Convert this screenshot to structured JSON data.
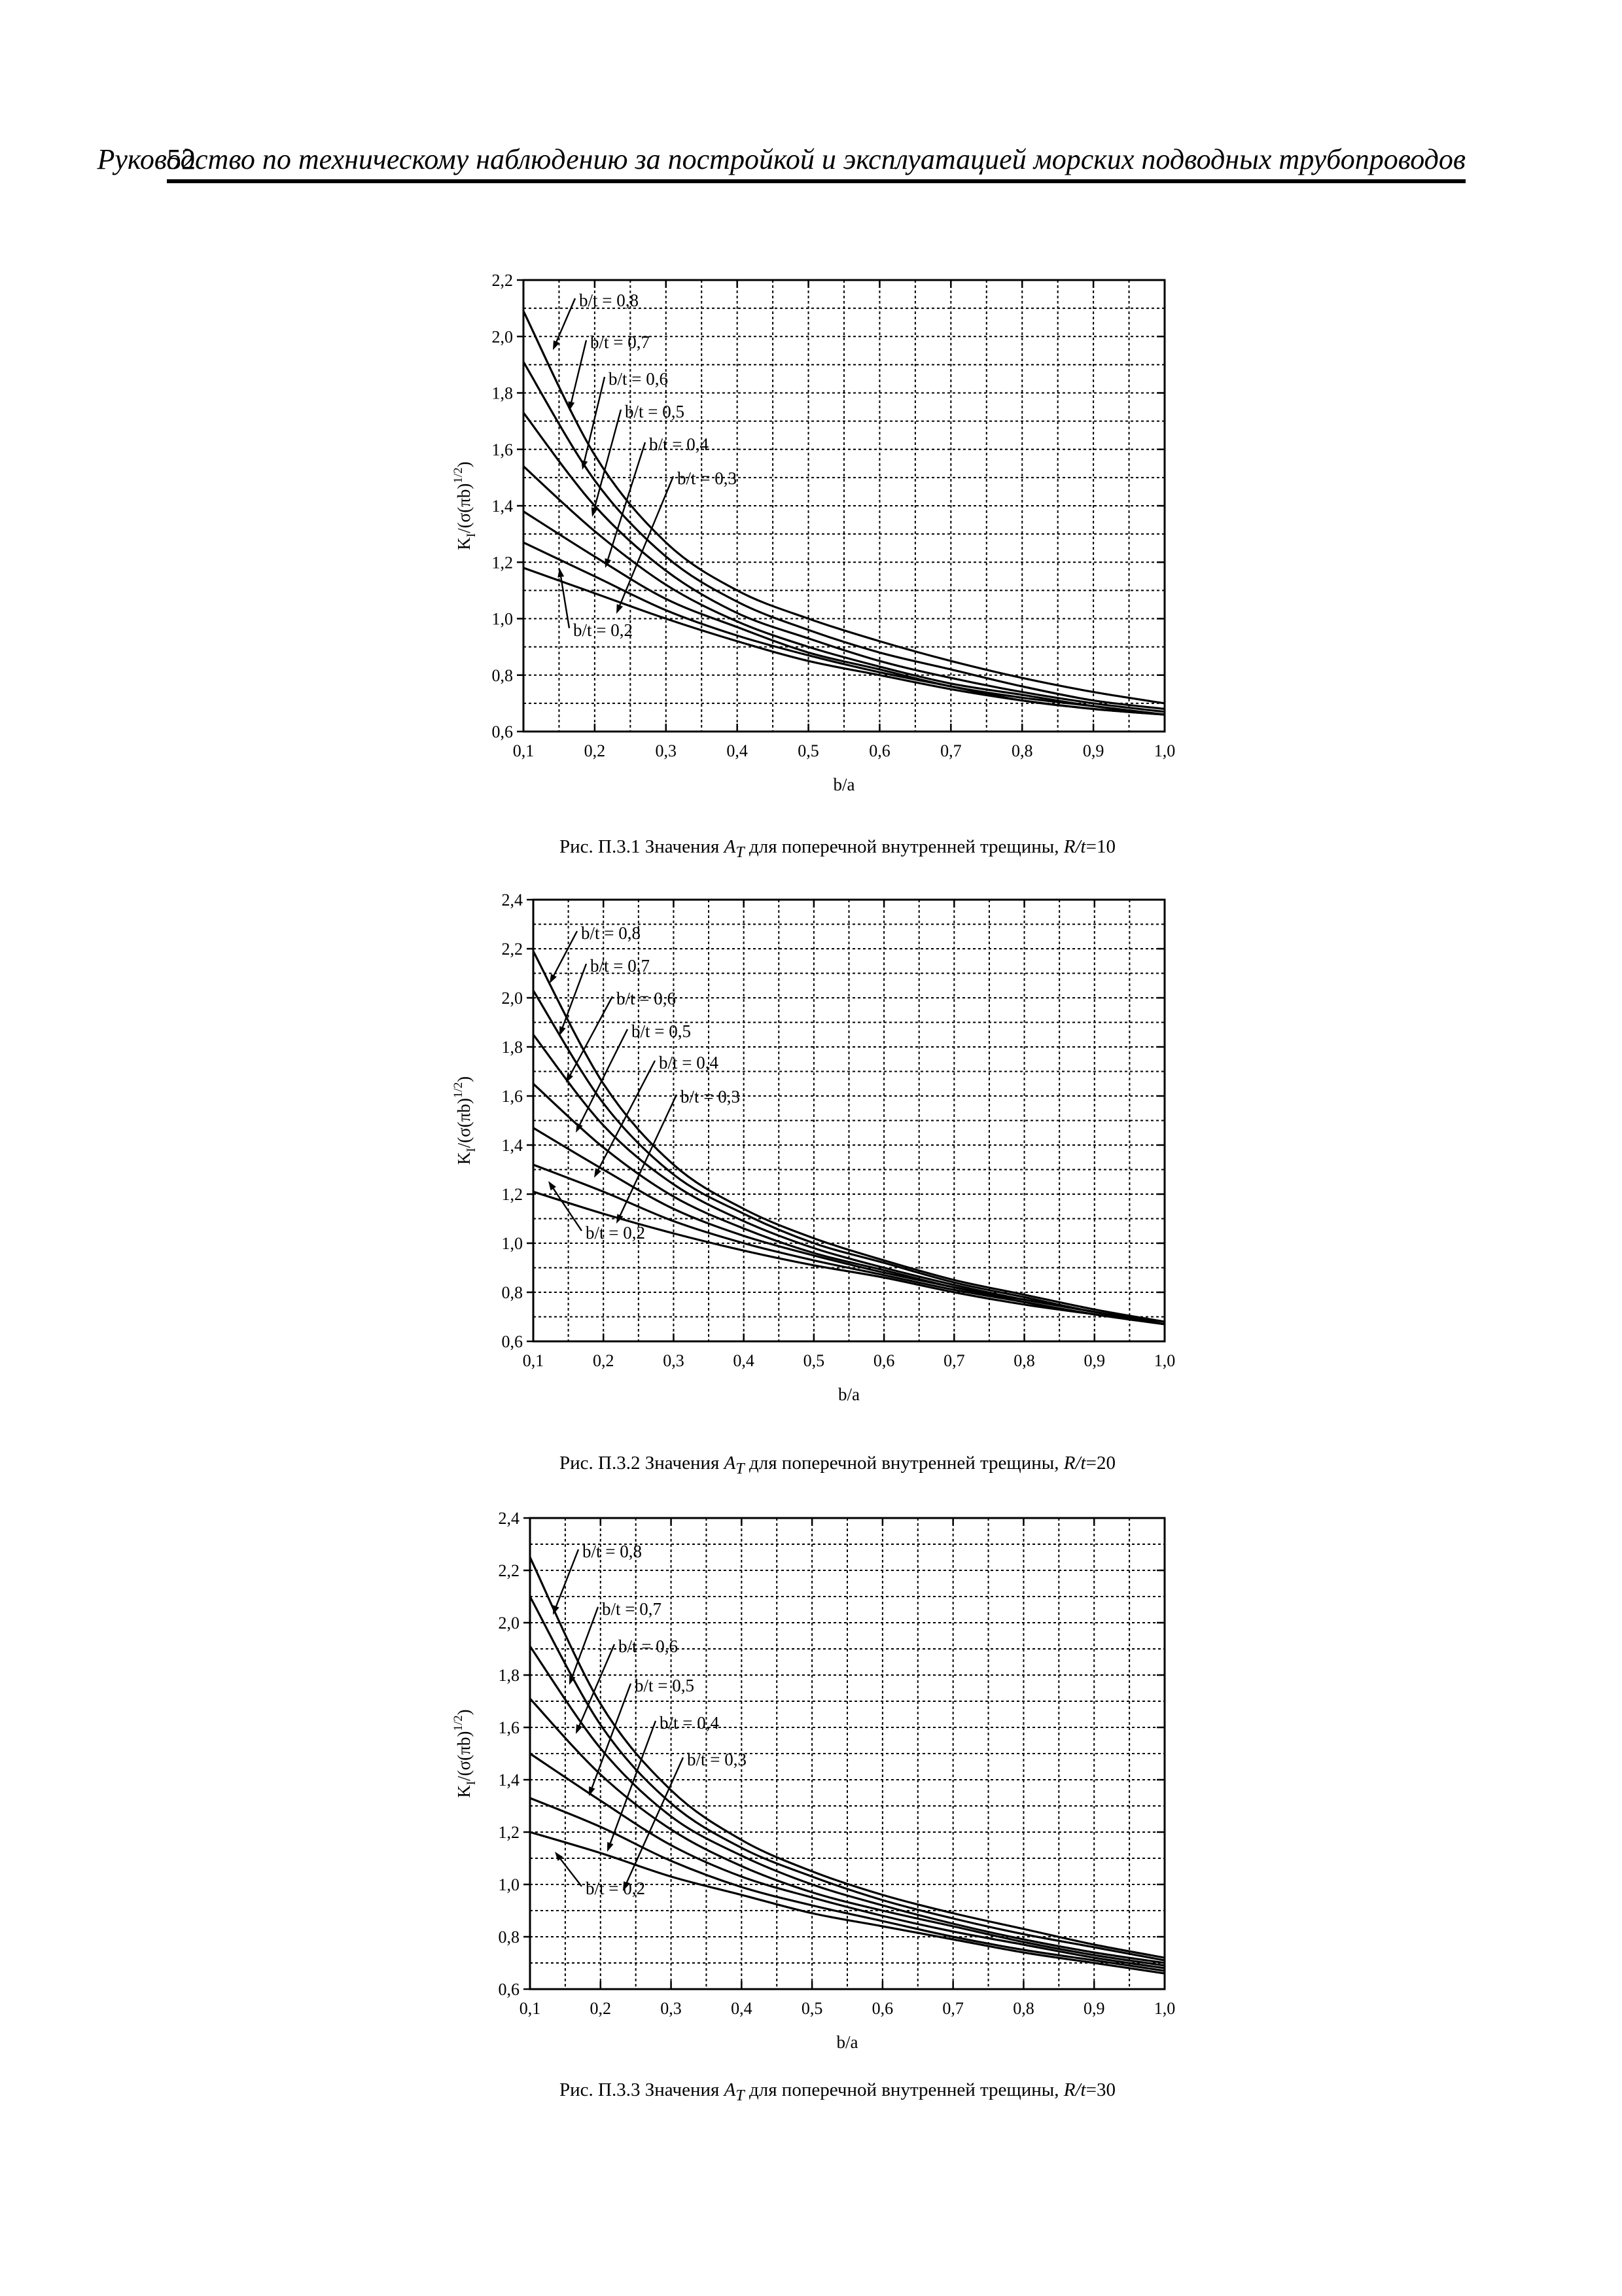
{
  "header": {
    "page_number": "52",
    "title": "Руководство по техническому наблюдению за постройкой и эксплуатацией морских подводных трубопроводов"
  },
  "figures": [
    {
      "caption_prefix": "Рис. П.3.1 Значения ",
      "caption_symbol": "A",
      "caption_subscript": "T",
      "caption_middle": " для поперечной внутренней трещины, ",
      "caption_ratio": "R/t",
      "caption_value": "=10"
    },
    {
      "caption_prefix": "Рис. П.3.2 Значения ",
      "caption_symbol": "A",
      "caption_subscript": "T",
      "caption_middle": " для поперечной внутренней трещины, ",
      "caption_ratio": "R/t",
      "caption_value": "=20"
    },
    {
      "caption_prefix": "Рис. П.3.3 Значения ",
      "caption_symbol": "A",
      "caption_subscript": "T",
      "caption_middle": " для поперечной внутренней трещины, ",
      "caption_ratio": "R/t",
      "caption_value": "=30"
    }
  ],
  "chart_data": [
    {
      "type": "line",
      "xlabel": "b/a",
      "ylabel": "K_I/(σ(πb)^1/2)",
      "xlim": [
        0.1,
        1.0
      ],
      "ylim": [
        0.6,
        2.2
      ],
      "xticks": [
        "0,1",
        "0,2",
        "0,3",
        "0,4",
        "0,5",
        "0,6",
        "0,7",
        "0,8",
        "0,9",
        "1,0"
      ],
      "yticks": [
        "0,6",
        "0,8",
        "1,0",
        "1,2",
        "1,4",
        "1,6",
        "1,8",
        "2,0",
        "2,2"
      ],
      "grid": true,
      "x": [
        0.1,
        0.2,
        0.3,
        0.4,
        0.5,
        0.6,
        0.7,
        0.8,
        0.9,
        1.0
      ],
      "series": [
        {
          "name": "b/t = 0,8",
          "values": [
            2.09,
            1.58,
            1.27,
            1.1,
            1.0,
            0.92,
            0.85,
            0.79,
            0.74,
            0.7
          ]
        },
        {
          "name": "b/t = 0,7",
          "values": [
            1.91,
            1.49,
            1.22,
            1.06,
            0.96,
            0.88,
            0.82,
            0.76,
            0.71,
            0.68
          ]
        },
        {
          "name": "b/t = 0,6",
          "values": [
            1.73,
            1.4,
            1.17,
            1.02,
            0.93,
            0.85,
            0.79,
            0.74,
            0.7,
            0.67
          ]
        },
        {
          "name": "b/t = 0,5",
          "values": [
            1.54,
            1.31,
            1.12,
            0.99,
            0.9,
            0.83,
            0.77,
            0.73,
            0.69,
            0.66
          ]
        },
        {
          "name": "b/t = 0,4",
          "values": [
            1.38,
            1.22,
            1.07,
            0.97,
            0.88,
            0.82,
            0.76,
            0.72,
            0.69,
            0.66
          ]
        },
        {
          "name": "b/t = 0,3",
          "values": [
            1.27,
            1.15,
            1.03,
            0.94,
            0.87,
            0.81,
            0.76,
            0.71,
            0.68,
            0.66
          ]
        },
        {
          "name": "b/t = 0,2",
          "values": [
            1.18,
            1.09,
            1.0,
            0.92,
            0.85,
            0.8,
            0.75,
            0.71,
            0.68,
            0.66
          ]
        }
      ]
    },
    {
      "type": "line",
      "xlabel": "b/a",
      "ylabel": "K_I/(σ(πb)^1/2)",
      "xlim": [
        0.1,
        1.0
      ],
      "ylim": [
        0.6,
        2.4
      ],
      "xticks": [
        "0,1",
        "0,2",
        "0,3",
        "0,4",
        "0,5",
        "0,6",
        "0,7",
        "0,8",
        "0,9",
        "1,0"
      ],
      "yticks": [
        "0,6",
        "0,8",
        "1,0",
        "1,2",
        "1,4",
        "1,6",
        "1,8",
        "2,0",
        "2,2",
        "2,4"
      ],
      "grid": true,
      "x": [
        0.1,
        0.2,
        0.3,
        0.4,
        0.5,
        0.6,
        0.7,
        0.8,
        0.9,
        1.0
      ],
      "series": [
        {
          "name": "b/t = 0,8",
          "values": [
            2.19,
            1.65,
            1.32,
            1.14,
            1.02,
            0.93,
            0.85,
            0.79,
            0.73,
            0.68
          ]
        },
        {
          "name": "b/t = 0,7",
          "values": [
            2.03,
            1.57,
            1.28,
            1.12,
            1.0,
            0.92,
            0.84,
            0.78,
            0.72,
            0.68
          ]
        },
        {
          "name": "b/t = 0,6",
          "values": [
            1.85,
            1.48,
            1.24,
            1.09,
            0.98,
            0.9,
            0.83,
            0.77,
            0.72,
            0.67
          ]
        },
        {
          "name": "b/t = 0,5",
          "values": [
            1.65,
            1.39,
            1.19,
            1.06,
            0.96,
            0.89,
            0.82,
            0.77,
            0.72,
            0.67
          ]
        },
        {
          "name": "b/t = 0,4",
          "values": [
            1.47,
            1.3,
            1.14,
            1.03,
            0.95,
            0.88,
            0.82,
            0.76,
            0.71,
            0.67
          ]
        },
        {
          "name": "b/t = 0,3",
          "values": [
            1.32,
            1.21,
            1.09,
            1.0,
            0.93,
            0.87,
            0.81,
            0.76,
            0.71,
            0.67
          ]
        },
        {
          "name": "b/t = 0,2",
          "values": [
            1.21,
            1.12,
            1.04,
            0.97,
            0.91,
            0.86,
            0.8,
            0.75,
            0.71,
            0.67
          ]
        }
      ]
    },
    {
      "type": "line",
      "xlabel": "b/a",
      "ylabel": "K_I/(σ(πb)^1/2)",
      "xlim": [
        0.1,
        1.0
      ],
      "ylim": [
        0.6,
        2.4
      ],
      "xticks": [
        "0,1",
        "0,2",
        "0,3",
        "0,4",
        "0,5",
        "0,6",
        "0,7",
        "0,8",
        "0,9",
        "1,0"
      ],
      "yticks": [
        "0,6",
        "0,8",
        "1,0",
        "1,2",
        "1,4",
        "1,6",
        "1,8",
        "2,0",
        "2,2",
        "2,4"
      ],
      "grid": true,
      "x": [
        0.1,
        0.2,
        0.3,
        0.4,
        0.5,
        0.6,
        0.7,
        0.8,
        0.9,
        1.0
      ],
      "series": [
        {
          "name": "b/t = 0,8",
          "values": [
            2.25,
            1.69,
            1.36,
            1.17,
            1.05,
            0.96,
            0.89,
            0.83,
            0.77,
            0.72
          ]
        },
        {
          "name": "b/t = 0,7",
          "values": [
            2.1,
            1.61,
            1.31,
            1.14,
            1.03,
            0.94,
            0.87,
            0.81,
            0.76,
            0.71
          ]
        },
        {
          "name": "b/t = 0,6",
          "values": [
            1.91,
            1.52,
            1.26,
            1.11,
            1.0,
            0.92,
            0.85,
            0.79,
            0.74,
            0.7
          ]
        },
        {
          "name": "b/t = 0,5",
          "values": [
            1.71,
            1.42,
            1.21,
            1.07,
            0.97,
            0.9,
            0.84,
            0.78,
            0.73,
            0.69
          ]
        },
        {
          "name": "b/t = 0,4",
          "values": [
            1.5,
            1.32,
            1.15,
            1.03,
            0.95,
            0.88,
            0.82,
            0.77,
            0.72,
            0.68
          ]
        },
        {
          "name": "b/t = 0,3",
          "values": [
            1.33,
            1.22,
            1.09,
            0.99,
            0.92,
            0.86,
            0.8,
            0.75,
            0.71,
            0.67
          ]
        },
        {
          "name": "b/t = 0,2",
          "values": [
            1.2,
            1.12,
            1.03,
            0.96,
            0.89,
            0.84,
            0.79,
            0.74,
            0.7,
            0.66
          ]
        }
      ]
    }
  ]
}
